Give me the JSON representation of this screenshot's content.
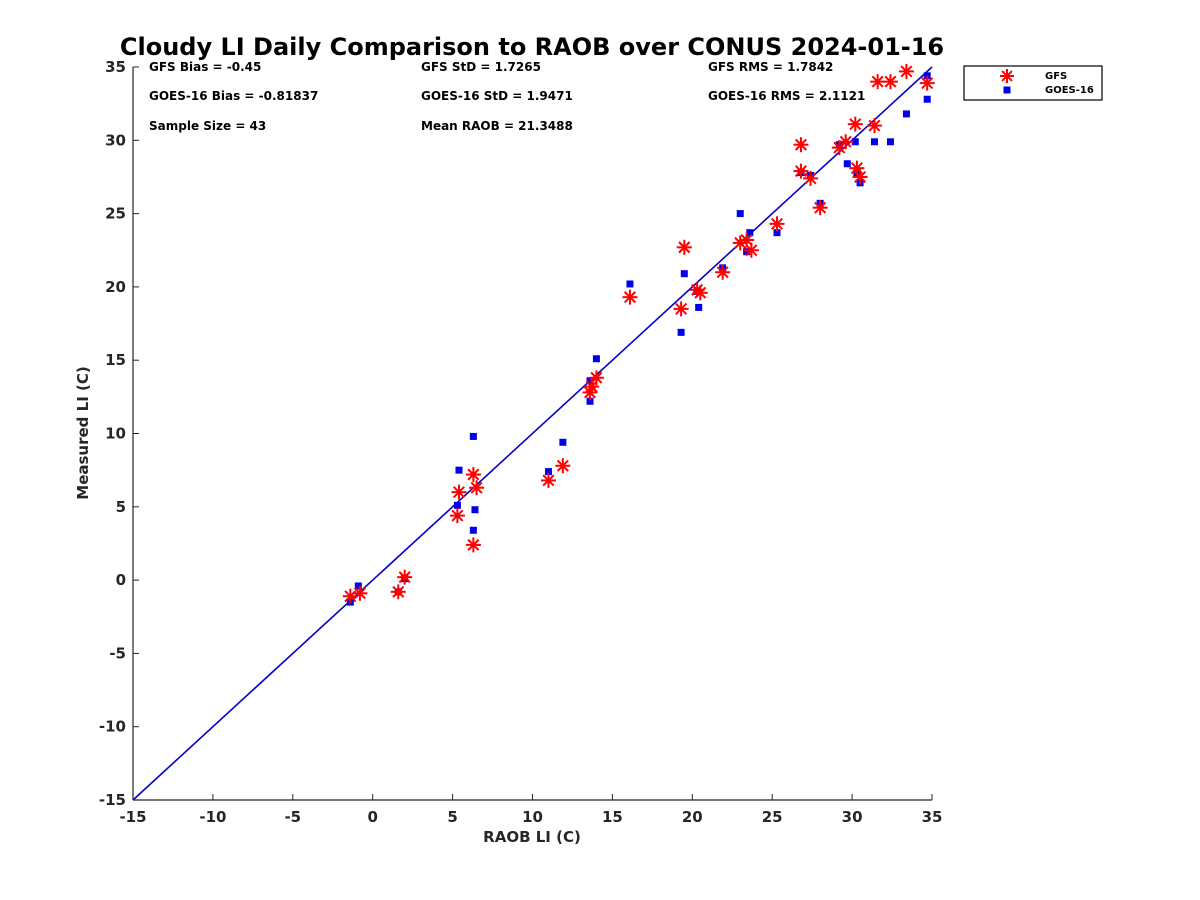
{
  "chart_data": {
    "type": "scatter",
    "title": "Cloudy LI Daily Comparison to RAOB over CONUS 2024-01-16",
    "xlabel": "RAOB LI (C)",
    "ylabel": "Measured LI (C)",
    "xlim": [
      -15,
      35
    ],
    "ylim": [
      -15,
      35
    ],
    "xticks": [
      "-15",
      "-10",
      "-5",
      "0",
      "5",
      "10",
      "15",
      "20",
      "25",
      "30",
      "35"
    ],
    "yticks": [
      "-15",
      "-10",
      "-5",
      "0",
      "5",
      "10",
      "15",
      "20",
      "25",
      "30",
      "35"
    ],
    "xtick_values": [
      -15,
      -10,
      -5,
      0,
      5,
      10,
      15,
      20,
      25,
      30,
      35
    ],
    "ytick_values": [
      -15,
      -10,
      -5,
      0,
      5,
      10,
      15,
      20,
      25,
      30,
      35
    ],
    "grid": false,
    "legend_position": "outside-top-right",
    "reference_line": {
      "from": [
        -15,
        -15
      ],
      "to": [
        35,
        35
      ],
      "color": "#0000cc"
    },
    "stats": [
      {
        "text": "GFS Bias = -0.45",
        "col": 0,
        "row": 0
      },
      {
        "text": "GFS StD = 1.7265",
        "col": 1,
        "row": 0
      },
      {
        "text": "GFS RMS = 1.7842",
        "col": 2,
        "row": 0
      },
      {
        "text": "GOES-16 Bias = -0.81837",
        "col": 0,
        "row": 1
      },
      {
        "text": "GOES-16 StD = 1.9471",
        "col": 1,
        "row": 1
      },
      {
        "text": "GOES-16 RMS = 2.1121",
        "col": 2,
        "row": 1
      },
      {
        "text": "Sample Size = 43",
        "col": 0,
        "row": 2
      },
      {
        "text": "Mean RAOB = 21.3488",
        "col": 1,
        "row": 2
      }
    ],
    "series": [
      {
        "name": "GFS",
        "marker": "asterisk",
        "color": "#ff0000",
        "points": [
          [
            -1.4,
            -1.1
          ],
          [
            -0.8,
            -0.9
          ],
          [
            1.6,
            -0.8
          ],
          [
            2.0,
            0.2
          ],
          [
            5.3,
            4.4
          ],
          [
            5.4,
            6.0
          ],
          [
            6.3,
            7.2
          ],
          [
            6.5,
            6.3
          ],
          [
            6.3,
            2.4
          ],
          [
            11.0,
            6.8
          ],
          [
            11.9,
            7.8
          ],
          [
            13.6,
            12.8
          ],
          [
            13.7,
            13.2
          ],
          [
            14.0,
            13.8
          ],
          [
            16.1,
            19.3
          ],
          [
            19.3,
            18.5
          ],
          [
            19.5,
            22.7
          ],
          [
            20.3,
            19.8
          ],
          [
            20.5,
            19.6
          ],
          [
            21.9,
            21.0
          ],
          [
            23.0,
            23.0
          ],
          [
            23.4,
            23.2
          ],
          [
            23.7,
            22.5
          ],
          [
            25.3,
            24.3
          ],
          [
            26.8,
            29.7
          ],
          [
            26.8,
            27.9
          ],
          [
            27.4,
            27.4
          ],
          [
            28.0,
            25.4
          ],
          [
            29.2,
            29.5
          ],
          [
            29.6,
            29.9
          ],
          [
            30.2,
            31.1
          ],
          [
            30.3,
            28.1
          ],
          [
            30.5,
            27.5
          ],
          [
            31.4,
            31.0
          ],
          [
            31.6,
            34.0
          ],
          [
            32.4,
            34.0
          ],
          [
            33.4,
            34.7
          ],
          [
            34.7,
            33.9
          ]
        ]
      },
      {
        "name": "GOES-16",
        "marker": "square",
        "color": "#0000ee",
        "points": [
          [
            -1.4,
            -1.5
          ],
          [
            -0.9,
            -0.4
          ],
          [
            1.6,
            -0.8
          ],
          [
            2.0,
            0.1
          ],
          [
            5.3,
            5.1
          ],
          [
            5.4,
            7.5
          ],
          [
            6.3,
            9.8
          ],
          [
            6.4,
            4.8
          ],
          [
            6.3,
            3.4
          ],
          [
            11.0,
            7.4
          ],
          [
            11.9,
            9.4
          ],
          [
            13.6,
            12.2
          ],
          [
            13.6,
            13.6
          ],
          [
            14.0,
            15.1
          ],
          [
            16.1,
            20.2
          ],
          [
            19.3,
            16.9
          ],
          [
            19.5,
            20.9
          ],
          [
            20.3,
            19.7
          ],
          [
            20.4,
            18.6
          ],
          [
            21.9,
            21.3
          ],
          [
            23.0,
            25.0
          ],
          [
            23.4,
            22.4
          ],
          [
            23.6,
            23.7
          ],
          [
            25.3,
            23.7
          ],
          [
            26.8,
            27.8
          ],
          [
            27.4,
            27.6
          ],
          [
            28.0,
            25.7
          ],
          [
            29.2,
            29.7
          ],
          [
            29.7,
            28.4
          ],
          [
            30.2,
            29.9
          ],
          [
            30.3,
            27.8
          ],
          [
            30.5,
            27.1
          ],
          [
            31.4,
            29.9
          ],
          [
            32.4,
            29.9
          ],
          [
            33.4,
            31.8
          ],
          [
            34.7,
            34.4
          ],
          [
            34.7,
            32.8
          ]
        ]
      }
    ]
  }
}
